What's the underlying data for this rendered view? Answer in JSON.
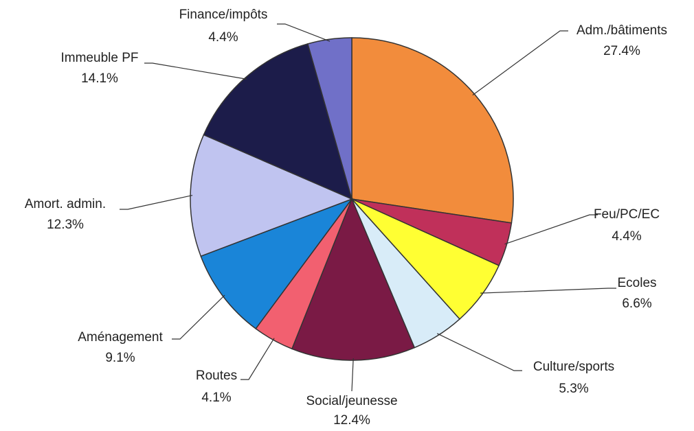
{
  "chart_data": {
    "type": "pie",
    "categories": [
      "Adm./bâtiments",
      "Feu/PC/EC",
      "Ecoles",
      "Culture/sports",
      "Social/jeunesse",
      "Routes",
      "Aménagement",
      "Amort. admin.",
      "Immeuble PF",
      "Finance/impôts"
    ],
    "values": [
      27.4,
      4.4,
      6.6,
      5.3,
      12.4,
      4.1,
      9.1,
      12.3,
      14.1,
      4.4
    ],
    "value_labels": [
      "27.4%",
      "4.4%",
      "6.6%",
      "5.3%",
      "12.4%",
      "4.1%",
      "9.1%",
      "12.3%",
      "14.1%",
      "4.4%"
    ],
    "colors": [
      "#f28c3c",
      "#c0305a",
      "#ffff33",
      "#d8ecf8",
      "#7a1a45",
      "#f26070",
      "#1a85d8",
      "#c0c4f0",
      "#1c1c4a",
      "#7070c8"
    ]
  }
}
